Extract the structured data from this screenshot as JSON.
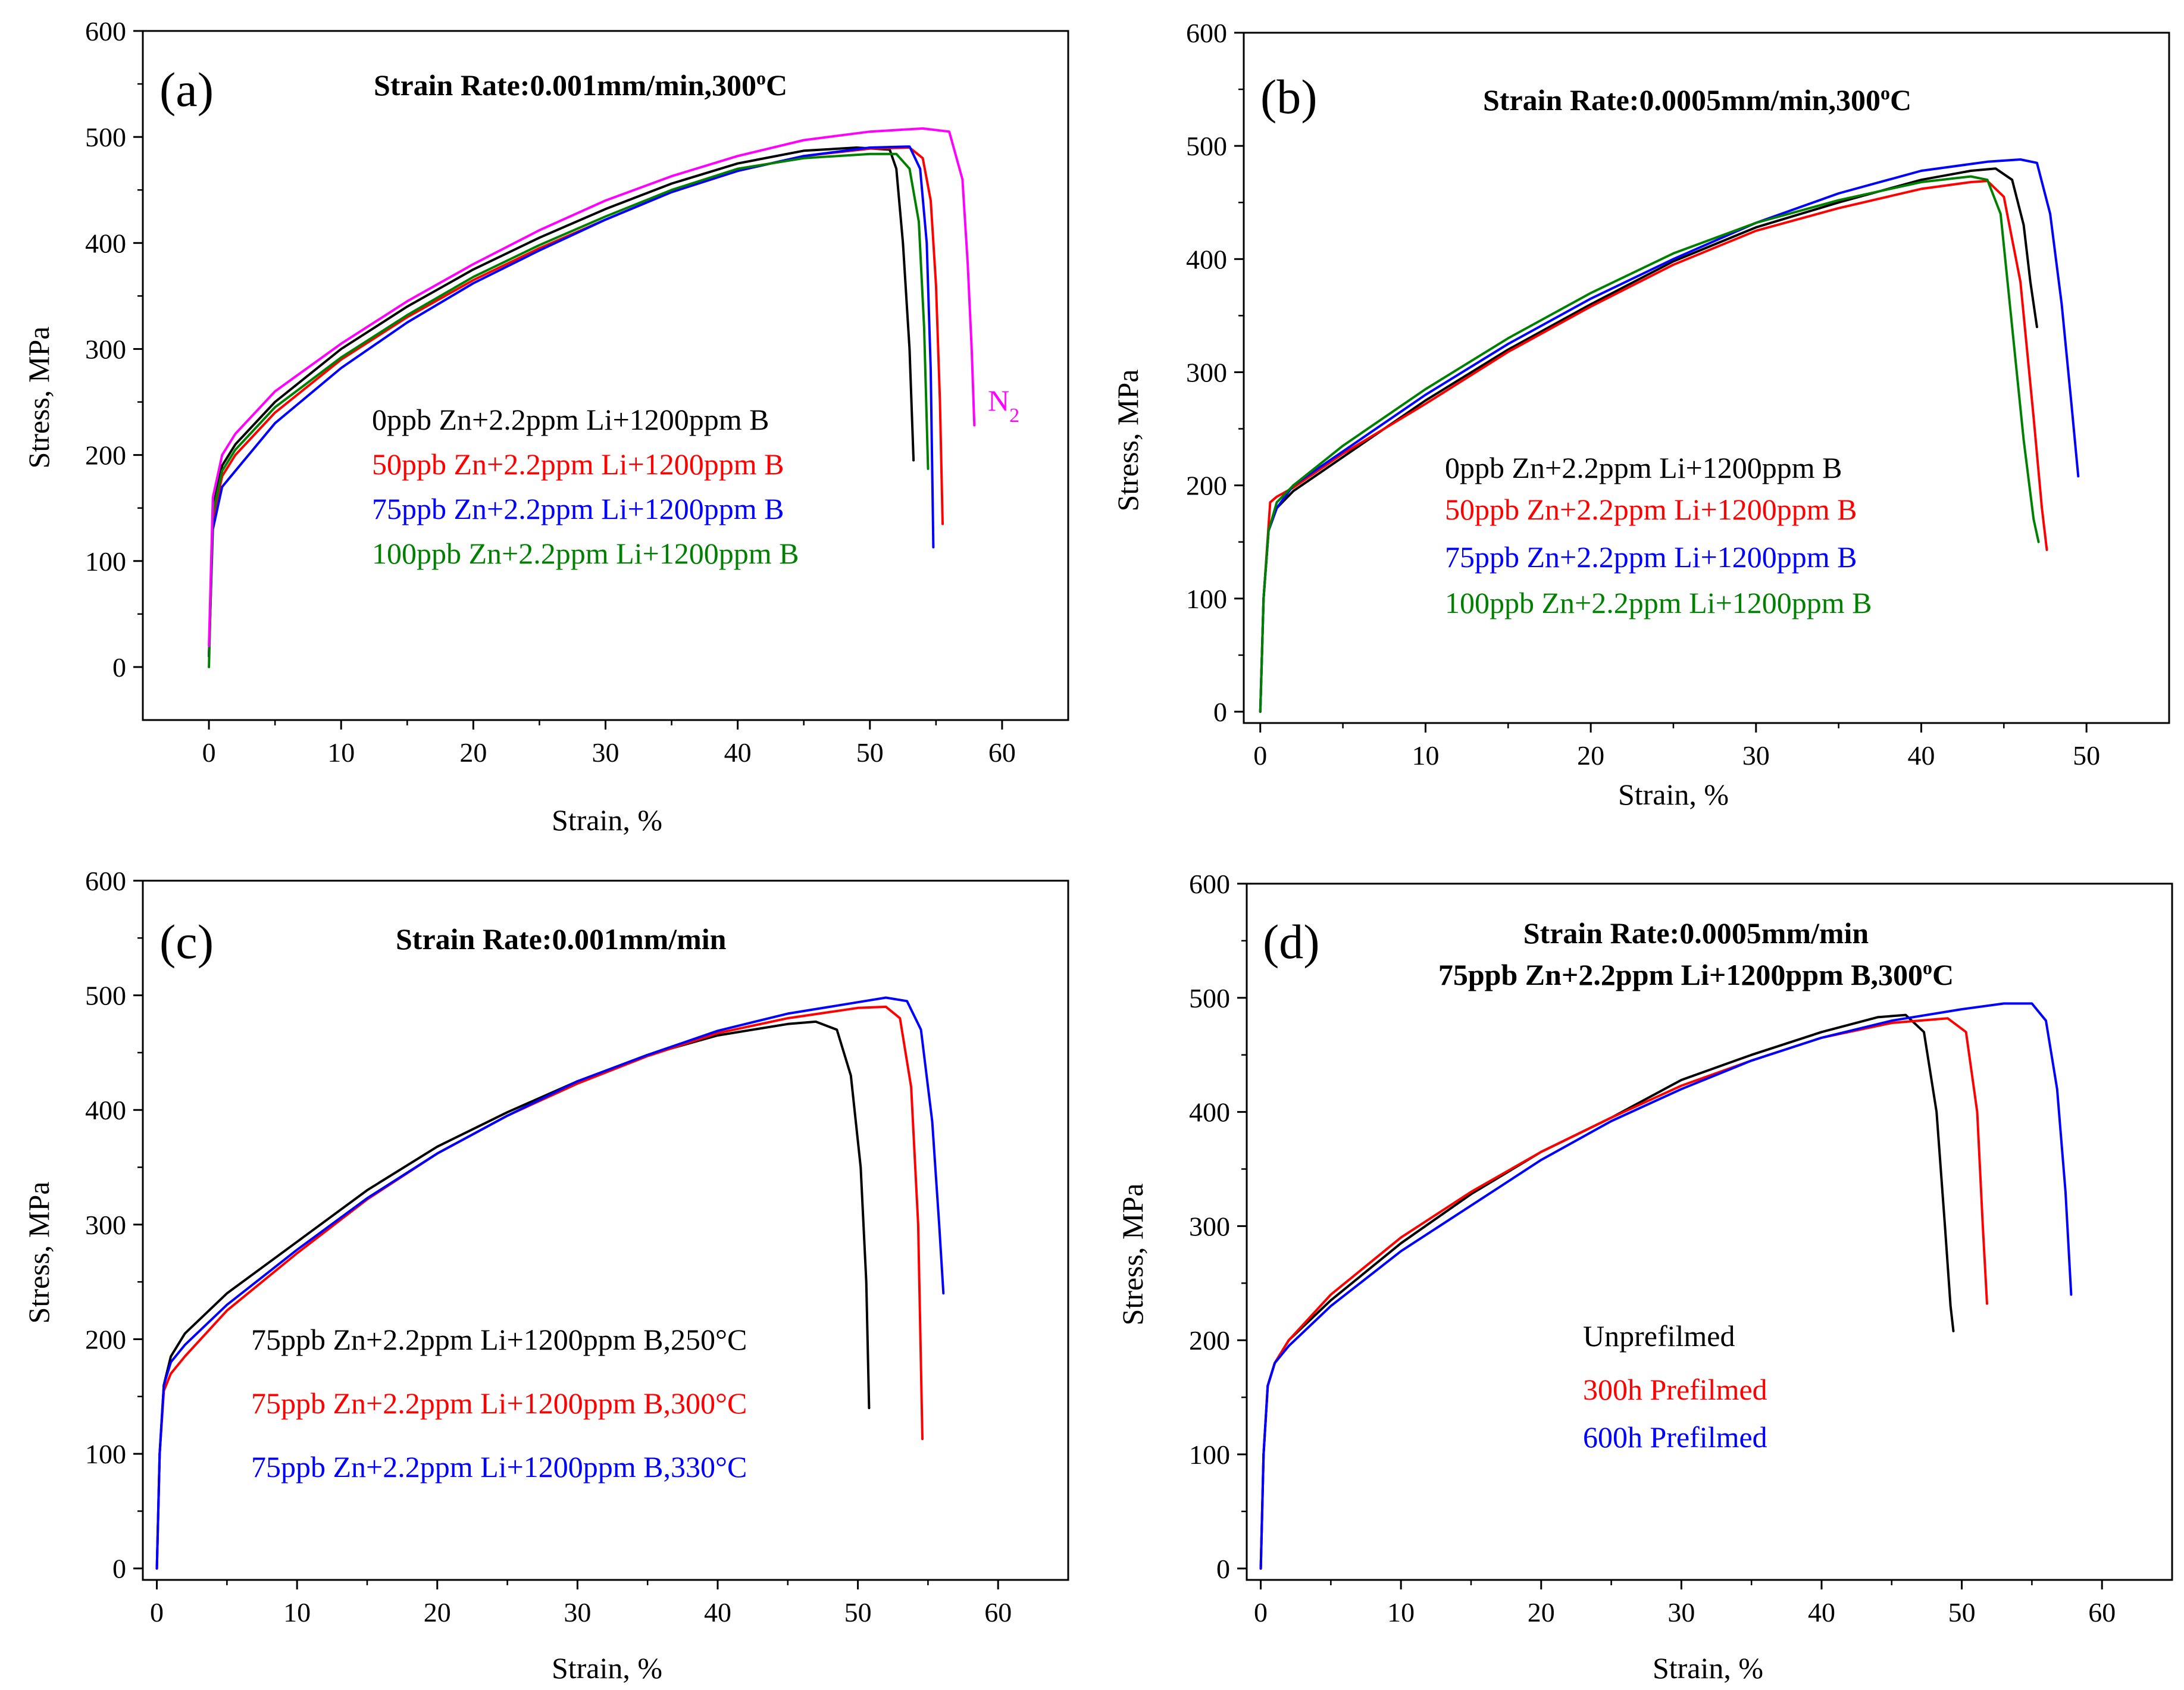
{
  "chart_data": [
    {
      "type": "line",
      "panel": "(a)",
      "title": "Strain Rate:0.001mm/min,300",
      "title_sup": "o",
      "title_suffix": "C",
      "xlabel": "Strain, %",
      "ylabel": "Stress, MPa",
      "xlim": [
        -5,
        65
      ],
      "ylim": [
        -50,
        600
      ],
      "xticks": [
        0,
        10,
        20,
        30,
        40,
        50,
        60
      ],
      "yticks": [
        0,
        100,
        200,
        300,
        400,
        500,
        600
      ],
      "legend": [
        "0ppb Zn+2.2ppm Li+1200ppm B",
        "50ppb Zn+2.2ppm Li+1200ppm B",
        "75ppb Zn+2.2ppm Li+1200ppm B",
        "100ppb Zn+2.2ppm Li+1200ppm B"
      ],
      "annotation": {
        "text": "N",
        "sub": "2"
      },
      "series": [
        {
          "name": "0ppb Zn+2.2ppm Li+1200ppm B",
          "color": "#000000",
          "x": [
            0,
            0.3,
            1,
            2,
            5,
            10,
            15,
            20,
            25,
            30,
            35,
            40,
            45,
            49,
            51.5,
            52,
            52.5,
            53,
            53.3
          ],
          "y": [
            10,
            150,
            190,
            210,
            250,
            300,
            340,
            375,
            405,
            432,
            456,
            475,
            487,
            490,
            488,
            470,
            400,
            300,
            195
          ]
        },
        {
          "name": "50ppb Zn+2.2ppm Li+1200ppm B",
          "color": "#ff0000",
          "x": [
            0,
            0.3,
            1,
            2,
            5,
            10,
            15,
            20,
            25,
            30,
            35,
            40,
            45,
            50,
            53,
            54,
            54.6,
            55,
            55.3,
            55.5
          ],
          "y": [
            10,
            140,
            180,
            200,
            240,
            290,
            330,
            365,
            395,
            422,
            448,
            468,
            482,
            489,
            490,
            480,
            440,
            360,
            250,
            135
          ]
        },
        {
          "name": "75ppb Zn+2.2ppm Li+1200ppm B",
          "color": "#0000ff",
          "x": [
            0,
            0.3,
            1,
            2,
            5,
            10,
            15,
            20,
            25,
            30,
            35,
            40,
            45,
            50,
            53,
            53.8,
            54.3,
            54.6,
            54.8
          ],
          "y": [
            10,
            130,
            170,
            185,
            230,
            282,
            325,
            362,
            393,
            422,
            448,
            468,
            482,
            490,
            491,
            470,
            400,
            280,
            113
          ]
        },
        {
          "name": "100ppb Zn+2.2ppm Li+1200ppm B",
          "color": "#008000",
          "x": [
            0,
            0.3,
            1,
            2,
            5,
            10,
            15,
            20,
            25,
            30,
            35,
            40,
            45,
            50,
            52,
            53,
            53.7,
            54.1,
            54.4
          ],
          "y": [
            0,
            145,
            185,
            205,
            245,
            292,
            332,
            368,
            398,
            425,
            450,
            470,
            480,
            484,
            484,
            470,
            420,
            320,
            187
          ]
        },
        {
          "name": "N2",
          "color": "#ff00ff",
          "x": [
            0,
            0.3,
            1,
            2,
            5,
            10,
            15,
            20,
            25,
            30,
            35,
            40,
            45,
            50,
            54,
            56,
            57,
            57.4,
            57.7,
            57.9
          ],
          "y": [
            20,
            160,
            200,
            220,
            260,
            305,
            345,
            380,
            412,
            440,
            463,
            482,
            497,
            505,
            508,
            505,
            460,
            380,
            300,
            228
          ]
        }
      ]
    },
    {
      "type": "line",
      "panel": "(b)",
      "title": "Strain Rate:0.0005mm/min,300",
      "title_sup": "o",
      "title_suffix": "C",
      "xlabel": "Strain, %",
      "ylabel": "Stress, MPa",
      "xlim": [
        -1,
        55
      ],
      "ylim": [
        -10,
        600
      ],
      "xticks": [
        0,
        10,
        20,
        30,
        40,
        50
      ],
      "yticks": [
        0,
        100,
        200,
        300,
        400,
        500,
        600
      ],
      "legend": [
        "0ppb Zn+2.2ppm Li+1200ppm B",
        "50ppb Zn+2.2ppm Li+1200ppm B",
        "75ppb Zn+2.2ppm Li+1200ppm B",
        "100ppb Zn+2.2ppm Li+1200ppm B"
      ],
      "series": [
        {
          "name": "0ppb Zn+2.2ppm Li+1200ppm B",
          "color": "#000000",
          "x": [
            0,
            0.2,
            0.5,
            1,
            2,
            5,
            10,
            15,
            20,
            25,
            30,
            35,
            40,
            43,
            44.5,
            45.5,
            46.2,
            46.6,
            47
          ],
          "y": [
            0,
            100,
            160,
            180,
            195,
            225,
            275,
            320,
            360,
            398,
            428,
            450,
            470,
            478,
            480,
            470,
            430,
            380,
            340
          ]
        },
        {
          "name": "50ppb Zn+2.2ppm Li+1200ppm B",
          "color": "#ff0000",
          "x": [
            0,
            0.2,
            0.6,
            1,
            2,
            5,
            10,
            15,
            20,
            25,
            30,
            35,
            40,
            43,
            44,
            45,
            46,
            46.8,
            47.3,
            47.6
          ],
          "y": [
            0,
            100,
            185,
            190,
            198,
            228,
            272,
            318,
            358,
            395,
            425,
            445,
            462,
            468,
            469,
            455,
            380,
            260,
            180,
            143
          ]
        },
        {
          "name": "75ppb Zn+2.2ppm Li+1200ppm B",
          "color": "#0000ff",
          "x": [
            0,
            0.2,
            0.5,
            1,
            2,
            5,
            10,
            15,
            20,
            25,
            30,
            35,
            40,
            44,
            46,
            47,
            47.8,
            48.5,
            49.1,
            49.5
          ],
          "y": [
            0,
            100,
            160,
            180,
            200,
            230,
            280,
            325,
            365,
            400,
            432,
            458,
            478,
            486,
            488,
            485,
            440,
            360,
            270,
            208
          ]
        },
        {
          "name": "100ppb Zn+2.2ppm Li+1200ppm B",
          "color": "#008000",
          "x": [
            0,
            0.2,
            0.5,
            1,
            2,
            5,
            10,
            15,
            20,
            25,
            30,
            35,
            40,
            43,
            44,
            44.8,
            45.5,
            46.2,
            46.8,
            47.1
          ],
          "y": [
            0,
            100,
            160,
            185,
            200,
            235,
            285,
            330,
            370,
            405,
            432,
            452,
            468,
            473,
            470,
            440,
            340,
            240,
            170,
            150
          ]
        }
      ]
    },
    {
      "type": "line",
      "panel": "(c)",
      "title": "Strain Rate:0.001mm/min",
      "xlabel": "Strain, %",
      "ylabel": "Stress, MPa",
      "xlim": [
        -1,
        65
      ],
      "ylim": [
        -10,
        600
      ],
      "xticks": [
        0,
        10,
        20,
        30,
        40,
        50,
        60
      ],
      "yticks": [
        0,
        100,
        200,
        300,
        400,
        500,
        600
      ],
      "legend": [
        "75ppb Zn+2.2ppm Li+1200ppm B,250°C",
        "75ppb Zn+2.2ppm Li+1200ppm B,300°C",
        "75ppb Zn+2.2ppm Li+1200ppm B,330°C"
      ],
      "series": [
        {
          "name": "75ppb Zn+2.2ppm Li+1200ppm B,250°C",
          "color": "#000000",
          "x": [
            0,
            0.2,
            0.5,
            1,
            2,
            5,
            10,
            15,
            20,
            25,
            30,
            35,
            40,
            45,
            47,
            48.5,
            49.5,
            50.2,
            50.6,
            50.8
          ],
          "y": [
            0,
            100,
            160,
            185,
            205,
            240,
            285,
            330,
            368,
            398,
            425,
            448,
            465,
            475,
            477,
            470,
            430,
            350,
            250,
            140
          ]
        },
        {
          "name": "75ppb Zn+2.2ppm Li+1200ppm B,300°C",
          "color": "#ff0000",
          "x": [
            0,
            0.2,
            0.5,
            1,
            2,
            5,
            10,
            15,
            20,
            25,
            30,
            35,
            40,
            45,
            50,
            52,
            53,
            53.8,
            54.3,
            54.6
          ],
          "y": [
            0,
            100,
            155,
            170,
            185,
            225,
            275,
            322,
            362,
            395,
            423,
            447,
            467,
            480,
            489,
            490,
            480,
            420,
            300,
            113
          ]
        },
        {
          "name": "75ppb Zn+2.2ppm Li+1200ppm B,330°C",
          "color": "#0000ff",
          "x": [
            0,
            0.2,
            0.5,
            1,
            2,
            5,
            10,
            15,
            20,
            25,
            30,
            35,
            40,
            45,
            50,
            52,
            53.5,
            54.5,
            55.3,
            55.8,
            56.1
          ],
          "y": [
            0,
            100,
            160,
            180,
            195,
            230,
            278,
            323,
            362,
            395,
            425,
            448,
            469,
            484,
            494,
            498,
            495,
            470,
            390,
            300,
            240
          ]
        }
      ]
    },
    {
      "type": "line",
      "panel": "(d)",
      "title": "Strain Rate:0.0005mm/min",
      "title2": "75ppb Zn+2.2ppm Li+1200ppm B,300",
      "title2_sup": "o",
      "title2_suffix": "C",
      "xlabel": "Strain, %",
      "ylabel": "Stress, MPa",
      "xlim": [
        -1,
        65
      ],
      "ylim": [
        -10,
        600
      ],
      "xticks": [
        0,
        10,
        20,
        30,
        40,
        50,
        60
      ],
      "yticks": [
        0,
        100,
        200,
        300,
        400,
        500,
        600
      ],
      "legend": [
        "Unprefilmed",
        "300h Prefilmed",
        "600h Prefilmed"
      ],
      "series": [
        {
          "name": "Unprefilmed",
          "color": "#000000",
          "x": [
            0,
            0.2,
            0.5,
            1,
            2,
            5,
            10,
            15,
            20,
            25,
            30,
            35,
            40,
            44,
            46,
            47.3,
            48.2,
            48.8,
            49.2,
            49.4
          ],
          "y": [
            0,
            100,
            160,
            180,
            200,
            235,
            285,
            328,
            365,
            395,
            428,
            450,
            470,
            483,
            485,
            470,
            400,
            300,
            230,
            208
          ]
        },
        {
          "name": "300h Prefilmed",
          "color": "#ff0000",
          "x": [
            0,
            0.2,
            0.5,
            1,
            2,
            5,
            10,
            15,
            20,
            25,
            30,
            35,
            40,
            45,
            49,
            50.3,
            51.1,
            51.5,
            51.8
          ],
          "y": [
            0,
            100,
            160,
            180,
            200,
            240,
            290,
            330,
            365,
            395,
            423,
            445,
            465,
            478,
            482,
            470,
            400,
            300,
            232
          ]
        },
        {
          "name": "600h Prefilmed",
          "color": "#0000ff",
          "x": [
            0,
            0.2,
            0.5,
            1,
            2,
            5,
            10,
            15,
            20,
            25,
            30,
            35,
            40,
            45,
            50,
            53,
            55,
            56,
            56.8,
            57.4,
            57.8
          ],
          "y": [
            0,
            100,
            160,
            180,
            195,
            230,
            278,
            318,
            358,
            392,
            420,
            445,
            465,
            480,
            490,
            495,
            495,
            480,
            420,
            330,
            240
          ]
        }
      ]
    }
  ]
}
